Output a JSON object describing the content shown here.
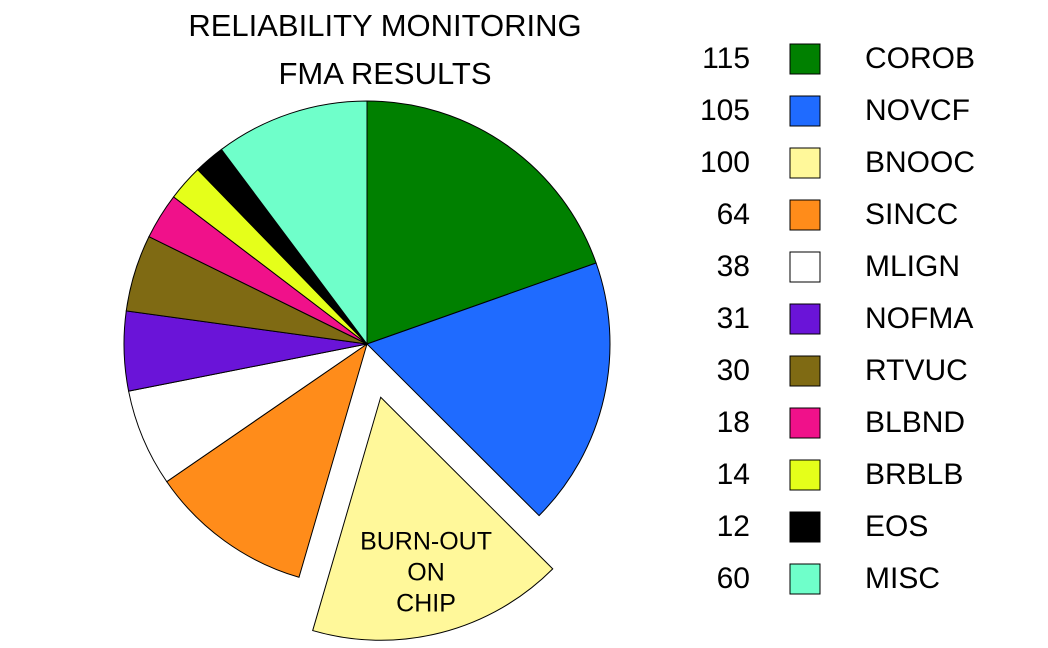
{
  "chart_data": {
    "type": "pie",
    "title": [
      "RELIABILITY MONITORING",
      "FMA RESULTS"
    ],
    "categories": [
      "COROB",
      "NOVCF",
      "BNOOC",
      "SINCC",
      "MLIGN",
      "NOFMA",
      "RTVUC",
      "BLBND",
      "BRBLB",
      "EOS",
      "MISC"
    ],
    "values": [
      115,
      105,
      100,
      64,
      38,
      31,
      30,
      18,
      14,
      12,
      60
    ],
    "colors": [
      "#008000",
      "#1f6bff",
      "#fff89a",
      "#ff8c1a",
      "#ffffff",
      "#6a14d8",
      "#7f6a13",
      "#f0118a",
      "#e5ff1a",
      "#000000",
      "#6fffca"
    ],
    "exploded": "BNOOC",
    "annotation": [
      "BURN-OUT",
      "ON",
      "CHIP"
    ]
  }
}
